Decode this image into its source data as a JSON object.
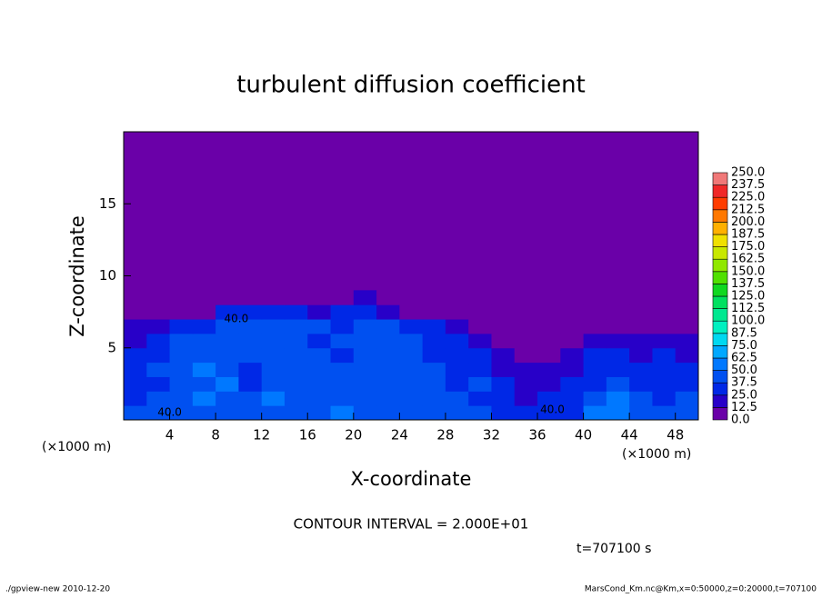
{
  "chart_data": {
    "type": "heatmap",
    "title": "turbulent diffusion coefficient",
    "xlabel": "X-coordinate",
    "ylabel": "Z-coordinate",
    "xunit": "(×1000 m)",
    "yunit": "(×1000 m)",
    "xlim": [
      0,
      50
    ],
    "ylim": [
      0,
      20
    ],
    "xticks": [
      4,
      8,
      12,
      16,
      20,
      24,
      28,
      32,
      36,
      40,
      44,
      48
    ],
    "yticks": [
      5,
      10,
      15
    ],
    "xbins": [
      0,
      2,
      4,
      6,
      8,
      10,
      12,
      14,
      16,
      18,
      20,
      22,
      24,
      26,
      28,
      30,
      32,
      34,
      36,
      38,
      40,
      42,
      44,
      46,
      48,
      50
    ],
    "zbins": [
      0,
      1,
      2,
      3,
      4,
      5,
      6,
      7,
      8,
      9
    ],
    "field": [
      [
        40,
        45,
        40,
        45,
        40,
        40,
        45,
        40,
        45,
        50,
        45,
        40,
        40,
        45,
        40,
        40,
        35,
        30,
        25,
        35,
        55,
        60,
        45,
        40,
        40
      ],
      [
        35,
        40,
        45,
        50,
        45,
        40,
        50,
        45,
        40,
        45,
        40,
        45,
        40,
        40,
        45,
        35,
        30,
        20,
        25,
        30,
        40,
        50,
        40,
        35,
        40
      ],
      [
        30,
        35,
        40,
        45,
        50,
        35,
        45,
        40,
        45,
        40,
        45,
        40,
        45,
        40,
        35,
        40,
        25,
        15,
        20,
        25,
        35,
        40,
        30,
        35,
        30
      ],
      [
        30,
        40,
        45,
        50,
        45,
        35,
        40,
        45,
        40,
        45,
        40,
        45,
        40,
        40,
        35,
        30,
        20,
        15,
        15,
        20,
        30,
        35,
        25,
        30,
        25
      ],
      [
        25,
        35,
        40,
        45,
        40,
        45,
        40,
        45,
        40,
        35,
        40,
        45,
        40,
        35,
        35,
        25,
        15,
        10,
        10,
        15,
        25,
        30,
        20,
        25,
        20
      ],
      [
        20,
        30,
        40,
        45,
        40,
        40,
        45,
        40,
        35,
        40,
        45,
        40,
        40,
        35,
        30,
        20,
        10,
        5,
        5,
        10,
        15,
        20,
        15,
        20,
        15
      ],
      [
        15,
        20,
        30,
        35,
        40,
        45,
        40,
        45,
        40,
        35,
        40,
        45,
        35,
        30,
        20,
        10,
        5,
        0,
        0,
        5,
        5,
        10,
        10,
        10,
        10
      ],
      [
        0,
        0,
        5,
        10,
        25,
        30,
        30,
        25,
        20,
        25,
        30,
        20,
        10,
        5,
        0,
        0,
        0,
        0,
        0,
        0,
        0,
        0,
        0,
        0,
        0
      ],
      [
        0,
        0,
        0,
        0,
        0,
        0,
        0,
        0,
        0,
        10,
        15,
        10,
        0,
        0,
        0,
        0,
        0,
        0,
        0,
        0,
        0,
        0,
        0,
        0,
        0
      ]
    ],
    "levels": [
      {
        "value": 0,
        "label": "0.0"
      },
      12.5,
      {
        "value": 25,
        "label": "25.0"
      },
      37.5,
      {
        "value": 50,
        "label": "50.0"
      },
      62.5,
      {
        "value": 75,
        "label": "75.0"
      },
      87.5,
      {
        "value": 100,
        "label": "100.0"
      },
      112.5,
      {
        "value": 125,
        "label": "125.0"
      },
      137.5,
      {
        "value": 150,
        "label": "150.0"
      },
      162.5,
      {
        "value": 175,
        "label": "175.0"
      },
      187.5,
      {
        "value": 200,
        "label": "200.0"
      },
      212.5,
      {
        "value": 225,
        "label": "225.0"
      },
      237.5,
      {
        "value": 250,
        "label": "250.0"
      }
    ],
    "colors": [
      "#6a00a8",
      "#2800c8",
      "#0028e6",
      "#0050f0",
      "#0078ff",
      "#00a8ff",
      "#00d8f0",
      "#00f0c0",
      "#00e890",
      "#00e060",
      "#10d820",
      "#50e000",
      "#90e800",
      "#c8e800",
      "#f0e000",
      "#ffb000",
      "#ff7800",
      "#ff3c00",
      "#f02828",
      "#f07878"
    ],
    "annotations": [
      "40.0",
      "40.0",
      "40.0"
    ],
    "contour_interval": "CONTOUR INTERVAL = 2.000E+01",
    "time": "t=707100 s",
    "footer_left": "./gpview-new   2010-12-20",
    "footer_right": "MarsCond_Km.nc@Km,x=0:50000,z=0:20000,t=707100"
  }
}
